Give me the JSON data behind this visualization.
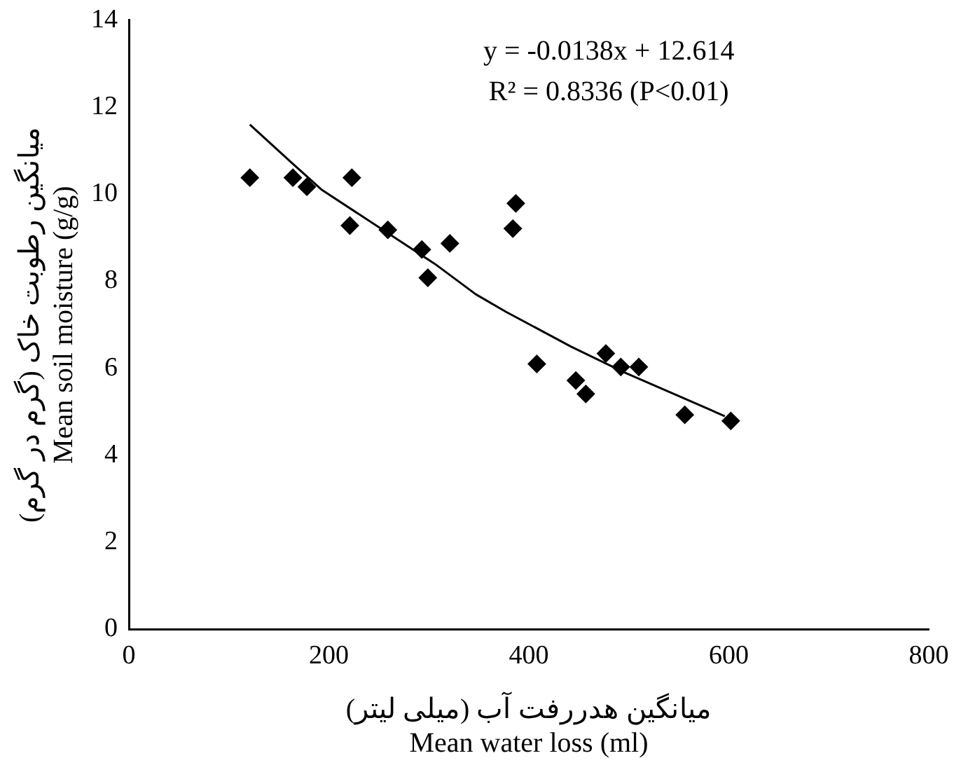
{
  "chart_data": {
    "type": "scatter",
    "xlabel": "میانگین هدررفت آب (میلی لیتر)\nMean water loss (ml)",
    "ylabel": "میانگین رطوبت خاک (گرم در گرم)\nMean soil moisture (g/g)",
    "annotations": [
      "y = -0.0138x + 12.614",
      "R² = 0.8336 (P<0.01)"
    ],
    "series": [
      {
        "color": "#000000",
        "marker": "diamond",
        "x": [
          121,
          164,
          178,
          223,
          221,
          259,
          293,
          321,
          299,
          387,
          384,
          408,
          477,
          492,
          510,
          447,
          457,
          556,
          602
        ],
        "values": [
          10.38,
          10.38,
          10.17,
          10.38,
          9.28,
          9.18,
          8.73,
          8.87,
          8.08,
          9.79,
          9.21,
          6.1,
          6.34,
          6.03,
          6.03,
          5.72,
          5.41,
          4.93,
          4.79
        ]
      },
      {
        "type": "line",
        "color": "#000000",
        "marker": "none",
        "line_style": "solid",
        "x": [
          121,
          164,
          193,
          306,
          347,
          377,
          442,
          496,
          596
        ],
        "values": [
          11.6,
          10.7,
          10.1,
          8.4,
          7.7,
          7.3,
          6.5,
          5.9,
          4.9
        ]
      }
    ],
    "xlim": [
      0,
      800
    ],
    "xticks": [
      0,
      200,
      400,
      600,
      800
    ],
    "ylim": [
      0,
      14
    ],
    "yticks": [
      0,
      2,
      4,
      6,
      8,
      10,
      12,
      14
    ],
    "grid": false,
    "legend": false
  }
}
